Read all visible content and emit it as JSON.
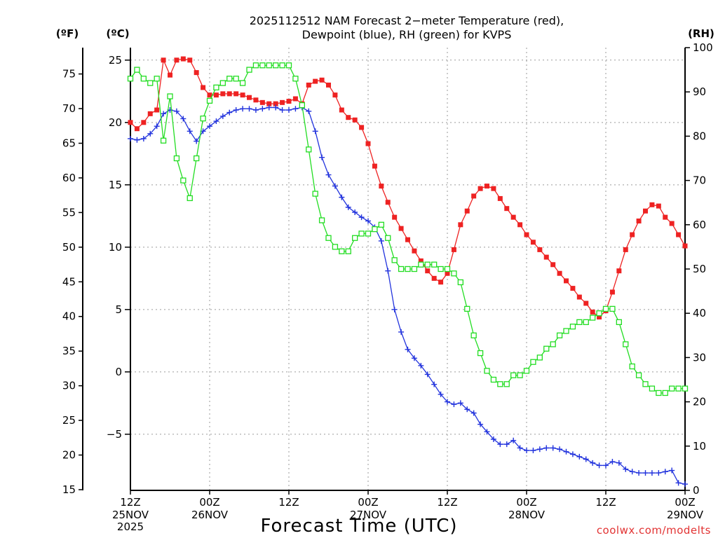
{
  "chart_data": {
    "type": "line",
    "title_line1": "2025112512 NAM Forecast 2−meter Temperature (red),",
    "title_line2": "Dewpoint (blue), RH (green) for KVPS",
    "xlabel": "Forecast Time (UTC)",
    "credit": "coolwx.com/modelts",
    "units": {
      "fahrenheit": "(ºF)",
      "celsius": "(ºC)",
      "rh": "(RH)"
    },
    "x_range_hours": [
      0,
      84
    ],
    "x_ticks": [
      {
        "hour": 0,
        "line1": "12Z",
        "line2": "25NOV",
        "line3": "2025"
      },
      {
        "hour": 12,
        "line1": "00Z",
        "line2": "26NOV",
        "line3": ""
      },
      {
        "hour": 24,
        "line1": "12Z",
        "line2": "",
        "line3": ""
      },
      {
        "hour": 36,
        "line1": "00Z",
        "line2": "27NOV",
        "line3": ""
      },
      {
        "hour": 48,
        "line1": "12Z",
        "line2": "",
        "line3": ""
      },
      {
        "hour": 60,
        "line1": "00Z",
        "line2": "28NOV",
        "line3": ""
      },
      {
        "hour": 72,
        "line1": "12Z",
        "line2": "",
        "line3": ""
      },
      {
        "hour": 84,
        "line1": "00Z",
        "line2": "29NOV",
        "line3": ""
      }
    ],
    "celsius_axis": {
      "range": [
        -9.5,
        26
      ],
      "ticks": [
        "25",
        "20",
        "15",
        "10",
        "5",
        "0",
        "−5"
      ],
      "tick_values": [
        25,
        20,
        15,
        10,
        5,
        0,
        -5
      ]
    },
    "fahrenheit_axis": {
      "ticks": [
        "75",
        "70",
        "65",
        "60",
        "55",
        "50",
        "45",
        "40",
        "35",
        "30",
        "25",
        "20",
        "15"
      ],
      "tick_values": [
        75,
        70,
        65,
        60,
        55,
        50,
        45,
        40,
        35,
        30,
        25,
        20,
        15
      ]
    },
    "rh_axis": {
      "range": [
        0,
        100
      ],
      "ticks": [
        "100",
        "90",
        "80",
        "70",
        "60",
        "50",
        "40",
        "30",
        "20",
        "10",
        "0"
      ],
      "tick_values": [
        100,
        90,
        80,
        70,
        60,
        50,
        40,
        30,
        20,
        10,
        0
      ]
    },
    "hours": [
      0,
      1,
      2,
      3,
      4,
      5,
      6,
      7,
      8,
      9,
      10,
      11,
      12,
      13,
      14,
      15,
      16,
      17,
      18,
      19,
      20,
      21,
      22,
      23,
      24,
      25,
      26,
      27,
      28,
      29,
      30,
      31,
      32,
      33,
      34,
      35,
      36,
      37,
      38,
      39,
      40,
      41,
      42,
      43,
      44,
      45,
      46,
      47,
      48,
      49,
      50,
      51,
      52,
      53,
      54,
      55,
      56,
      57,
      58,
      59,
      60,
      61,
      62,
      63,
      64,
      65,
      66,
      67,
      68,
      69,
      70,
      71,
      72,
      73,
      74,
      75,
      76,
      77,
      78,
      79,
      80,
      81,
      82,
      83,
      84
    ],
    "series": [
      {
        "name": "Temperature",
        "unit": "C",
        "color": "#ee2222",
        "marker": "square-filled",
        "values": [
          20.0,
          19.5,
          20.0,
          20.7,
          21.0,
          25.0,
          23.8,
          25.0,
          25.1,
          25.0,
          24.0,
          22.8,
          22.2,
          22.2,
          22.3,
          22.3,
          22.3,
          22.2,
          22.0,
          21.8,
          21.6,
          21.5,
          21.5,
          21.6,
          21.7,
          21.9,
          21.5,
          23.0,
          23.3,
          23.4,
          23.0,
          22.2,
          21.0,
          20.4,
          20.2,
          19.6,
          18.3,
          16.5,
          14.9,
          13.6,
          12.4,
          11.5,
          10.6,
          9.7,
          8.9,
          8.1,
          7.5,
          7.2,
          7.9,
          9.8,
          11.8,
          12.9,
          14.1,
          14.7,
          14.9,
          14.7,
          13.9,
          13.1,
          12.4,
          11.8,
          11.0,
          10.4,
          9.8,
          9.2,
          8.6,
          7.9,
          7.3,
          6.7,
          6.0,
          5.5,
          4.8,
          4.4,
          4.9,
          6.4,
          8.1,
          9.8,
          11.0,
          12.1,
          12.9,
          13.4,
          13.3,
          12.4,
          11.9,
          11.0,
          10.1
        ]
      },
      {
        "name": "Dewpoint",
        "unit": "C",
        "color": "#2233dd",
        "marker": "plus",
        "values": [
          18.7,
          18.6,
          18.7,
          19.1,
          19.7,
          20.7,
          21.0,
          20.9,
          20.3,
          19.3,
          18.5,
          19.3,
          19.7,
          20.1,
          20.5,
          20.8,
          21.0,
          21.1,
          21.1,
          21.0,
          21.1,
          21.2,
          21.2,
          21.0,
          21.0,
          21.1,
          21.2,
          20.9,
          19.3,
          17.2,
          15.8,
          14.9,
          14.0,
          13.2,
          12.8,
          12.4,
          12.1,
          11.6,
          10.5,
          8.1,
          5.0,
          3.2,
          1.8,
          1.1,
          0.5,
          -0.2,
          -1.0,
          -1.8,
          -2.4,
          -2.6,
          -2.5,
          -3.0,
          -3.3,
          -4.2,
          -4.8,
          -5.4,
          -5.8,
          -5.8,
          -5.5,
          -6.1,
          -6.3,
          -6.3,
          -6.2,
          -6.1,
          -6.1,
          -6.2,
          -6.4,
          -6.6,
          -6.8,
          -7.0,
          -7.3,
          -7.5,
          -7.5,
          -7.2,
          -7.3,
          -7.8,
          -8.0,
          -8.1,
          -8.1,
          -8.1,
          -8.1,
          -8.0,
          -7.9,
          -8.9,
          -9.0
        ]
      },
      {
        "name": "RH",
        "unit": "%",
        "color": "#22dd22",
        "marker": "square-open",
        "values": [
          93,
          95,
          93,
          92,
          93,
          79,
          89,
          75,
          70,
          66,
          75,
          84,
          88,
          91,
          92,
          93,
          93,
          92,
          95,
          96,
          96,
          96,
          96,
          96,
          96,
          93,
          87,
          77,
          67,
          61,
          57,
          55,
          54,
          54,
          57,
          58,
          58,
          59,
          60,
          57,
          52,
          50,
          50,
          50,
          51,
          51,
          51,
          50,
          50,
          49,
          47,
          41,
          35,
          31,
          27,
          25,
          24,
          24,
          26,
          26,
          27,
          29,
          30,
          32,
          33,
          35,
          36,
          37,
          38,
          38,
          39,
          40,
          41,
          41,
          38,
          33,
          28,
          26,
          24,
          23,
          22,
          22,
          23,
          23,
          23
        ]
      }
    ]
  }
}
